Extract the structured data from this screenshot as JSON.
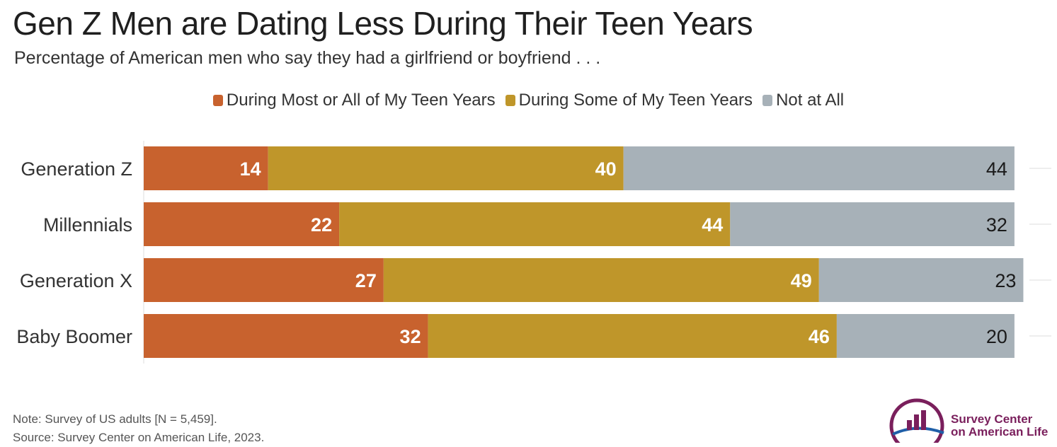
{
  "chart_data": {
    "type": "bar",
    "orientation": "horizontal",
    "stacked": true,
    "title": "Gen Z Men are Dating Less During Their Teen Years",
    "subtitle": "Percentage of American men who say they had a girlfriend or boyfriend . . .",
    "categories": [
      "Generation Z",
      "Millennials",
      "Generation X",
      "Baby Boomer"
    ],
    "series": [
      {
        "name": "During Most or All of My Teen Years",
        "color": "#c8622e",
        "values": [
          14,
          22,
          27,
          32
        ]
      },
      {
        "name": "During Some of My Teen Years",
        "color": "#bf962a",
        "values": [
          40,
          44,
          49,
          46
        ]
      },
      {
        "name": "Not at All",
        "color": "#a7b1b8",
        "values": [
          44,
          32,
          23,
          20
        ]
      }
    ],
    "xlim": [
      0,
      100
    ],
    "legend_position": "top-center"
  },
  "notes": {
    "line1": "Note: Survey of US adults [N = 5,459].",
    "line2": "Source: Survey Center on American Life, 2023."
  },
  "logo": {
    "line1": "Survey Center",
    "line2": "on American Life",
    "primary_color": "#7a1f5c",
    "secondary_color": "#1f5fa8"
  }
}
